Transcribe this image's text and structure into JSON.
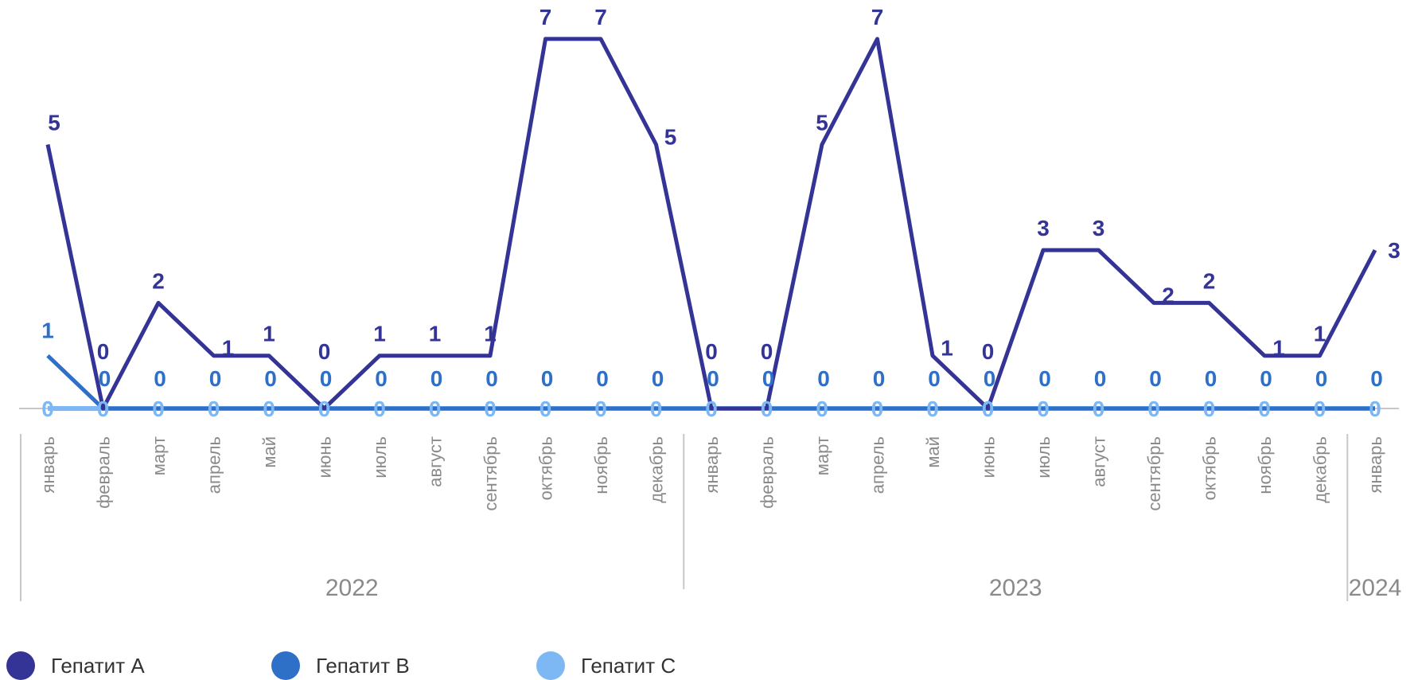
{
  "chart_data": {
    "type": "line",
    "categories": [
      "январь",
      "февраль",
      "март",
      "апрель",
      "май",
      "июнь",
      "июль",
      "август",
      "сентябрь",
      "октябрь",
      "ноябрь",
      "декабрь",
      "январь",
      "февраль",
      "март",
      "апрель",
      "май",
      "июнь",
      "июль",
      "август",
      "сентябрь",
      "октябрь",
      "ноябрь",
      "декабрь",
      "январь"
    ],
    "groups": [
      {
        "label": "2022",
        "start": 0,
        "end": 11
      },
      {
        "label": "2023",
        "start": 12,
        "end": 23
      },
      {
        "label": "2024",
        "start": 24,
        "end": 24
      }
    ],
    "series": [
      {
        "name": "Гепатит А",
        "color": "#343497",
        "values": [
          5,
          0,
          2,
          1,
          1,
          0,
          1,
          1,
          1,
          7,
          7,
          5,
          0,
          0,
          5,
          7,
          1,
          0,
          3,
          3,
          2,
          2,
          1,
          1,
          3
        ]
      },
      {
        "name": "Гепатит В",
        "color": "#2E6FC7",
        "values": [
          1,
          0,
          0,
          0,
          0,
          0,
          0,
          0,
          0,
          0,
          0,
          0,
          0,
          0,
          0,
          0,
          0,
          0,
          0,
          0,
          0,
          0,
          0,
          0,
          0
        ]
      },
      {
        "name": "Гепатит С",
        "color": "#7DB8F5",
        "values": [
          0,
          0,
          0,
          0,
          0,
          0,
          0,
          0,
          0,
          0,
          0,
          0,
          0,
          0,
          0,
          0,
          0,
          0,
          0,
          0,
          0,
          0,
          0,
          0,
          0
        ]
      }
    ],
    "ylim": [
      0,
      7
    ],
    "grid": false,
    "legend_position": "bottom-left"
  }
}
